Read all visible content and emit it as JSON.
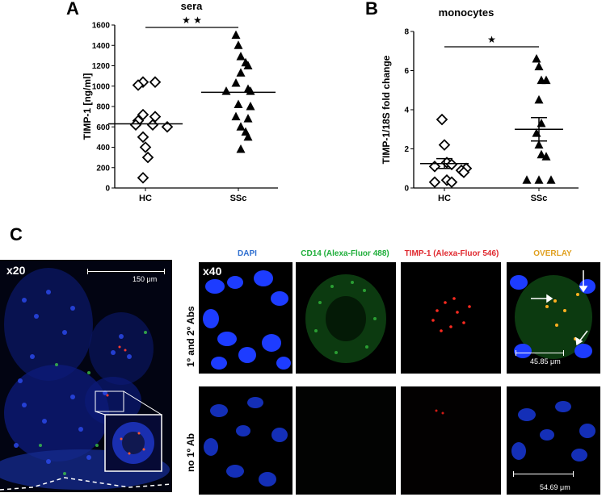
{
  "panels": {
    "a_letter": "A",
    "b_letter": "B",
    "c_letter": "C"
  },
  "chart_data": [
    {
      "type": "scatter",
      "title": "sera",
      "ylabel": "TIMP-1 [ng/ml]",
      "xlabel": "",
      "categories": [
        "HC",
        "SSc"
      ],
      "ylim": [
        0,
        1600
      ],
      "yticks": [
        0,
        200,
        400,
        600,
        800,
        1000,
        1200,
        1400,
        1600
      ],
      "significance": "★ ★",
      "series": [
        {
          "category": "HC",
          "marker": "open-diamond",
          "mean": 630,
          "values": [
            1040,
            1040,
            1010,
            720,
            700,
            660,
            620,
            620,
            600,
            500,
            400,
            300,
            100
          ]
        },
        {
          "category": "SSc",
          "marker": "filled-triangle",
          "mean": 940,
          "values": [
            1500,
            1400,
            1290,
            1230,
            1200,
            1130,
            1030,
            970,
            950,
            950,
            820,
            800,
            700,
            680,
            600,
            550,
            500,
            380
          ]
        }
      ]
    },
    {
      "type": "scatter",
      "title": "monocytes",
      "ylabel": "TIMP-1/18S fold change",
      "xlabel": "",
      "categories": [
        "HC",
        "SSc"
      ],
      "ylim": [
        0,
        8
      ],
      "yticks": [
        0,
        2,
        4,
        6,
        8
      ],
      "significance": "★",
      "series": [
        {
          "category": "HC",
          "marker": "open-diamond",
          "mean": 1.25,
          "sem": [
            1.0,
            1.5
          ],
          "values": [
            3.5,
            2.2,
            1.3,
            1.2,
            1.1,
            1.0,
            0.9,
            0.8,
            0.4,
            0.3,
            0.3
          ]
        },
        {
          "category": "SSc",
          "marker": "filled-triangle",
          "mean": 3.0,
          "sem": [
            2.4,
            3.6
          ],
          "values": [
            6.6,
            6.2,
            5.5,
            5.5,
            4.5,
            3.3,
            2.8,
            2.2,
            1.7,
            1.6,
            0.4,
            0.4,
            0.4
          ]
        }
      ]
    }
  ],
  "panel_c": {
    "overview_mag": "x20",
    "overview_scale": "150 μm",
    "grid_mag": "x40",
    "columns": [
      {
        "label": "DAPI",
        "color": "#2f6fd0"
      },
      {
        "label": "CD14 (Alexa-Fluor 488)",
        "color": "#1fae3a"
      },
      {
        "label": "TIMP-1 (Alexa-Fluor 546)",
        "color": "#e0282e"
      },
      {
        "label": "OVERLAY",
        "color": "#e0a020"
      }
    ],
    "rows": [
      {
        "label": "1º and 2º Abs",
        "scale": "45.85 μm"
      },
      {
        "label": "no 1º Ab",
        "scale": "54.69 μm"
      }
    ]
  }
}
